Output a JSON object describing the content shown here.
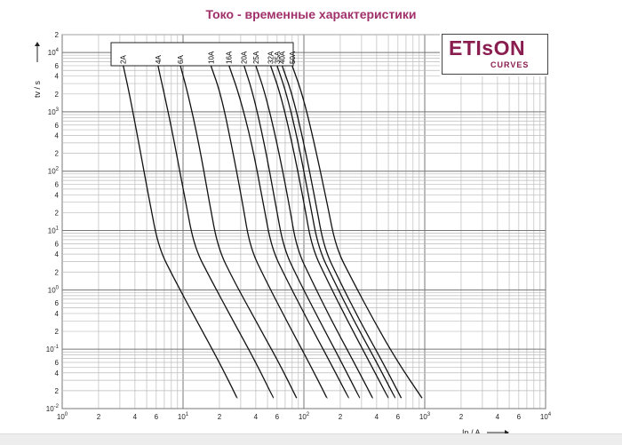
{
  "page": {
    "title": "Токо - временные характеристики"
  },
  "logo": {
    "main_text": "ETIsON",
    "sub_text": "CURVES",
    "color": "#8a1d4f"
  },
  "chart_data": {
    "type": "line",
    "title": "Токо - временные характеристики",
    "xlabel": "Ip / A",
    "ylabel": "tv / s",
    "xscale": "log",
    "yscale": "log",
    "xlim": [
      1,
      10000
    ],
    "ylim": [
      0.01,
      20000
    ],
    "grid": true,
    "legend": "curve labels at top of each curve, inside a boxed header",
    "x_tick_labels": [
      "10^0",
      "2",
      "4",
      "6",
      "10^1",
      "2",
      "4",
      "6",
      "10^2",
      "2",
      "4",
      "6",
      "10^3",
      "2",
      "4",
      "6",
      "10^4"
    ],
    "y_tick_labels": [
      "10^-2",
      "2",
      "4",
      "6",
      "10^-1",
      "2",
      "4",
      "6",
      "10^0",
      "2",
      "4",
      "6",
      "10^1",
      "2",
      "4",
      "6",
      "10^2",
      "2",
      "4",
      "6",
      "10^3",
      "2",
      "4",
      "6",
      "10^4",
      "2"
    ],
    "series": [
      {
        "name": "2A",
        "x": [
          3.2,
          3.6,
          4.3,
          5.3,
          6.3,
          8.5,
          13,
          20,
          28
        ],
        "y": [
          6000,
          2000,
          300,
          30,
          5,
          1.5,
          0.3,
          0.06,
          0.015
        ]
      },
      {
        "name": "4A",
        "x": [
          6.2,
          7.0,
          8.5,
          10.5,
          12.5,
          17,
          26,
          40,
          56
        ],
        "y": [
          6000,
          2000,
          300,
          30,
          5,
          1.5,
          0.3,
          0.06,
          0.015
        ]
      },
      {
        "name": "6A",
        "x": [
          9.5,
          11,
          13.5,
          16.5,
          19.5,
          26,
          40,
          62,
          87
        ],
        "y": [
          6000,
          2000,
          300,
          30,
          5,
          1.5,
          0.3,
          0.06,
          0.015
        ]
      },
      {
        "name": "10A",
        "x": [
          17,
          20.5,
          25,
          31,
          36,
          48,
          72,
          110,
          155
        ],
        "y": [
          6000,
          2000,
          300,
          30,
          5,
          1.5,
          0.3,
          0.06,
          0.015
        ]
      },
      {
        "name": "16A",
        "x": [
          24,
          29,
          37,
          46,
          54,
          72,
          108,
          165,
          235
        ],
        "y": [
          6000,
          2000,
          300,
          30,
          5,
          1.5,
          0.3,
          0.06,
          0.015
        ]
      },
      {
        "name": "20A",
        "x": [
          32,
          38,
          47,
          58,
          68,
          90,
          135,
          205,
          290
        ],
        "y": [
          6000,
          2000,
          300,
          30,
          5,
          1.5,
          0.3,
          0.06,
          0.015
        ]
      },
      {
        "name": "25A",
        "x": [
          40,
          48,
          60,
          75,
          87,
          115,
          170,
          260,
          370
        ],
        "y": [
          6000,
          2000,
          300,
          30,
          5,
          1.5,
          0.3,
          0.06,
          0.015
        ]
      },
      {
        "name": "32A",
        "x": [
          53,
          64,
          80,
          100,
          117,
          155,
          230,
          350,
          500
        ],
        "y": [
          6000,
          2000,
          300,
          30,
          5,
          1.5,
          0.3,
          0.06,
          0.015
        ]
      },
      {
        "name": "35A",
        "x": [
          60,
          72,
          90,
          112,
          132,
          175,
          260,
          400,
          570
        ],
        "y": [
          6000,
          2000,
          300,
          30,
          5,
          1.5,
          0.3,
          0.06,
          0.015
        ]
      },
      {
        "name": "40A",
        "x": [
          66,
          80,
          100,
          125,
          147,
          195,
          290,
          450,
          640
        ],
        "y": [
          6000,
          2000,
          300,
          30,
          5,
          1.5,
          0.3,
          0.06,
          0.015
        ]
      },
      {
        "name": "50A",
        "x": [
          80,
          97,
          122,
          155,
          185,
          250,
          380,
          600,
          950
        ],
        "y": [
          6000,
          2000,
          300,
          30,
          5,
          1.5,
          0.3,
          0.06,
          0.015
        ]
      }
    ]
  }
}
